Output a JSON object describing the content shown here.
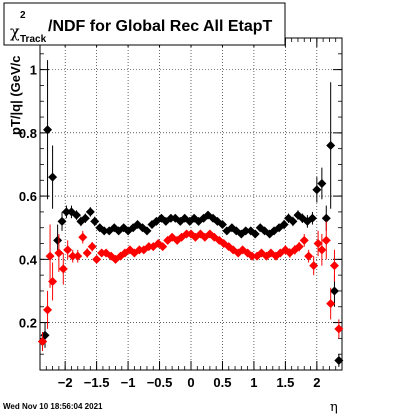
{
  "timestamp": "Wed Nov 10 18:56:04 2021",
  "chart_data": {
    "type": "scatter",
    "title": {
      "symbol": "χ",
      "superscript": "2",
      "subscript": "Track",
      "text": "/NDF for Global Rec All EtapT"
    },
    "xlabel": "η",
    "ylabel": "pT/|q| (GeV/c",
    "xlim": [
      -2.4,
      2.4
    ],
    "ylim": [
      0.05,
      1.1
    ],
    "xticks": [
      -2,
      -1.5,
      -1,
      -0.5,
      0,
      0.5,
      1,
      1.5,
      2
    ],
    "xtick_labels": [
      "−2",
      "−1.5",
      "−1",
      "−0.5",
      "0",
      "0.5",
      "1",
      "1.5",
      "2"
    ],
    "yticks": [
      0.2,
      0.4,
      0.6,
      0.8,
      1
    ],
    "ytick_labels": [
      "0.2",
      "0.4",
      "0.6",
      "0.8",
      "1"
    ],
    "grid": true,
    "series": [
      {
        "color": "#000000",
        "points": [
          {
            "x": -2.36,
            "y": 0.14,
            "e": 0.03
          },
          {
            "x": -2.32,
            "y": 0.16,
            "e": 0.04
          },
          {
            "x": -2.28,
            "y": 0.81,
            "e": 0.22
          },
          {
            "x": -2.2,
            "y": 0.66,
            "e": 0.1
          },
          {
            "x": -2.12,
            "y": 0.46,
            "e": 0.05
          },
          {
            "x": -2.05,
            "y": 0.52,
            "e": 0.03
          },
          {
            "x": -1.98,
            "y": 0.55,
            "e": 0.02
          },
          {
            "x": -1.9,
            "y": 0.55,
            "e": 0.02
          },
          {
            "x": -1.82,
            "y": 0.54,
            "e": 0.015
          },
          {
            "x": -1.75,
            "y": 0.52,
            "e": 0.015
          },
          {
            "x": -1.68,
            "y": 0.53,
            "e": 0.015
          },
          {
            "x": -1.6,
            "y": 0.55,
            "e": 0.015
          },
          {
            "x": -1.53,
            "y": 0.52,
            "e": 0.015
          },
          {
            "x": -1.45,
            "y": 0.5,
            "e": 0.01
          },
          {
            "x": -1.38,
            "y": 0.49,
            "e": 0.01
          },
          {
            "x": -1.3,
            "y": 0.49,
            "e": 0.01
          },
          {
            "x": -1.22,
            "y": 0.5,
            "e": 0.01
          },
          {
            "x": -1.15,
            "y": 0.49,
            "e": 0.01
          },
          {
            "x": -1.07,
            "y": 0.5,
            "e": 0.01
          },
          {
            "x": -1.0,
            "y": 0.49,
            "e": 0.01
          },
          {
            "x": -0.92,
            "y": 0.5,
            "e": 0.01
          },
          {
            "x": -0.85,
            "y": 0.51,
            "e": 0.01
          },
          {
            "x": -0.77,
            "y": 0.5,
            "e": 0.01
          },
          {
            "x": -0.7,
            "y": 0.49,
            "e": 0.01
          },
          {
            "x": -0.62,
            "y": 0.51,
            "e": 0.01
          },
          {
            "x": -0.55,
            "y": 0.52,
            "e": 0.01
          },
          {
            "x": -0.47,
            "y": 0.53,
            "e": 0.01
          },
          {
            "x": -0.4,
            "y": 0.52,
            "e": 0.01
          },
          {
            "x": -0.32,
            "y": 0.53,
            "e": 0.01
          },
          {
            "x": -0.25,
            "y": 0.53,
            "e": 0.01
          },
          {
            "x": -0.17,
            "y": 0.52,
            "e": 0.01
          },
          {
            "x": -0.1,
            "y": 0.53,
            "e": 0.01
          },
          {
            "x": -0.02,
            "y": 0.52,
            "e": 0.01
          },
          {
            "x": 0.05,
            "y": 0.53,
            "e": 0.01
          },
          {
            "x": 0.12,
            "y": 0.52,
            "e": 0.01
          },
          {
            "x": 0.2,
            "y": 0.53,
            "e": 0.01
          },
          {
            "x": 0.27,
            "y": 0.54,
            "e": 0.01
          },
          {
            "x": 0.35,
            "y": 0.53,
            "e": 0.01
          },
          {
            "x": 0.42,
            "y": 0.52,
            "e": 0.01
          },
          {
            "x": 0.5,
            "y": 0.51,
            "e": 0.01
          },
          {
            "x": 0.57,
            "y": 0.49,
            "e": 0.01
          },
          {
            "x": 0.65,
            "y": 0.5,
            "e": 0.01
          },
          {
            "x": 0.72,
            "y": 0.49,
            "e": 0.01
          },
          {
            "x": 0.8,
            "y": 0.48,
            "e": 0.01
          },
          {
            "x": 0.87,
            "y": 0.49,
            "e": 0.01
          },
          {
            "x": 0.95,
            "y": 0.49,
            "e": 0.01
          },
          {
            "x": 1.02,
            "y": 0.48,
            "e": 0.01
          },
          {
            "x": 1.1,
            "y": 0.5,
            "e": 0.01
          },
          {
            "x": 1.17,
            "y": 0.49,
            "e": 0.01
          },
          {
            "x": 1.25,
            "y": 0.48,
            "e": 0.01
          },
          {
            "x": 1.32,
            "y": 0.49,
            "e": 0.01
          },
          {
            "x": 1.4,
            "y": 0.5,
            "e": 0.01
          },
          {
            "x": 1.48,
            "y": 0.51,
            "e": 0.015
          },
          {
            "x": 1.55,
            "y": 0.53,
            "e": 0.015
          },
          {
            "x": 1.62,
            "y": 0.52,
            "e": 0.015
          },
          {
            "x": 1.7,
            "y": 0.54,
            "e": 0.015
          },
          {
            "x": 1.77,
            "y": 0.53,
            "e": 0.015
          },
          {
            "x": 1.85,
            "y": 0.52,
            "e": 0.02
          },
          {
            "x": 1.93,
            "y": 0.53,
            "e": 0.02
          },
          {
            "x": 2.0,
            "y": 0.62,
            "e": 0.04
          },
          {
            "x": 2.08,
            "y": 0.64,
            "e": 0.05
          },
          {
            "x": 2.15,
            "y": 0.53,
            "e": 0.04
          },
          {
            "x": 2.22,
            "y": 0.76,
            "e": 0.2
          },
          {
            "x": 2.28,
            "y": 0.3,
            "e": 0.05
          },
          {
            "x": 2.35,
            "y": 0.08,
            "e": 0.02
          }
        ]
      },
      {
        "color": "#ff0000",
        "points": [
          {
            "x": -2.36,
            "y": 0.14,
            "e": 0.03
          },
          {
            "x": -2.28,
            "y": 0.24,
            "e": 0.06
          },
          {
            "x": -2.24,
            "y": 0.41,
            "e": 0.1
          },
          {
            "x": -2.2,
            "y": 0.33,
            "e": 0.06
          },
          {
            "x": -2.1,
            "y": 0.42,
            "e": 0.06
          },
          {
            "x": -2.03,
            "y": 0.37,
            "e": 0.05
          },
          {
            "x": -1.96,
            "y": 0.43,
            "e": 0.03
          },
          {
            "x": -1.88,
            "y": 0.41,
            "e": 0.02
          },
          {
            "x": -1.8,
            "y": 0.41,
            "e": 0.02
          },
          {
            "x": -1.72,
            "y": 0.47,
            "e": 0.02
          },
          {
            "x": -1.65,
            "y": 0.42,
            "e": 0.015
          },
          {
            "x": -1.57,
            "y": 0.44,
            "e": 0.015
          },
          {
            "x": -1.5,
            "y": 0.4,
            "e": 0.01
          },
          {
            "x": -1.42,
            "y": 0.42,
            "e": 0.01
          },
          {
            "x": -1.35,
            "y": 0.42,
            "e": 0.01
          },
          {
            "x": -1.27,
            "y": 0.41,
            "e": 0.01
          },
          {
            "x": -1.2,
            "y": 0.4,
            "e": 0.01
          },
          {
            "x": -1.12,
            "y": 0.41,
            "e": 0.01
          },
          {
            "x": -1.05,
            "y": 0.42,
            "e": 0.01
          },
          {
            "x": -0.97,
            "y": 0.43,
            "e": 0.01
          },
          {
            "x": -0.9,
            "y": 0.42,
            "e": 0.01
          },
          {
            "x": -0.82,
            "y": 0.43,
            "e": 0.01
          },
          {
            "x": -0.75,
            "y": 0.43,
            "e": 0.01
          },
          {
            "x": -0.67,
            "y": 0.44,
            "e": 0.01
          },
          {
            "x": -0.6,
            "y": 0.44,
            "e": 0.01
          },
          {
            "x": -0.52,
            "y": 0.45,
            "e": 0.01
          },
          {
            "x": -0.45,
            "y": 0.44,
            "e": 0.01
          },
          {
            "x": -0.37,
            "y": 0.46,
            "e": 0.01
          },
          {
            "x": -0.3,
            "y": 0.47,
            "e": 0.01
          },
          {
            "x": -0.22,
            "y": 0.46,
            "e": 0.01
          },
          {
            "x": -0.15,
            "y": 0.47,
            "e": 0.01
          },
          {
            "x": -0.07,
            "y": 0.48,
            "e": 0.01
          },
          {
            "x": 0.0,
            "y": 0.48,
            "e": 0.01
          },
          {
            "x": 0.07,
            "y": 0.47,
            "e": 0.01
          },
          {
            "x": 0.15,
            "y": 0.48,
            "e": 0.01
          },
          {
            "x": 0.22,
            "y": 0.47,
            "e": 0.01
          },
          {
            "x": 0.3,
            "y": 0.48,
            "e": 0.01
          },
          {
            "x": 0.37,
            "y": 0.47,
            "e": 0.01
          },
          {
            "x": 0.45,
            "y": 0.46,
            "e": 0.01
          },
          {
            "x": 0.52,
            "y": 0.45,
            "e": 0.01
          },
          {
            "x": 0.6,
            "y": 0.44,
            "e": 0.01
          },
          {
            "x": 0.67,
            "y": 0.43,
            "e": 0.01
          },
          {
            "x": 0.75,
            "y": 0.42,
            "e": 0.01
          },
          {
            "x": 0.82,
            "y": 0.43,
            "e": 0.01
          },
          {
            "x": 0.9,
            "y": 0.42,
            "e": 0.01
          },
          {
            "x": 0.97,
            "y": 0.41,
            "e": 0.01
          },
          {
            "x": 1.05,
            "y": 0.41,
            "e": 0.01
          },
          {
            "x": 1.12,
            "y": 0.42,
            "e": 0.01
          },
          {
            "x": 1.2,
            "y": 0.41,
            "e": 0.01
          },
          {
            "x": 1.27,
            "y": 0.42,
            "e": 0.01
          },
          {
            "x": 1.35,
            "y": 0.41,
            "e": 0.01
          },
          {
            "x": 1.42,
            "y": 0.42,
            "e": 0.01
          },
          {
            "x": 1.5,
            "y": 0.43,
            "e": 0.015
          },
          {
            "x": 1.57,
            "y": 0.42,
            "e": 0.015
          },
          {
            "x": 1.65,
            "y": 0.43,
            "e": 0.015
          },
          {
            "x": 1.72,
            "y": 0.44,
            "e": 0.015
          },
          {
            "x": 1.8,
            "y": 0.46,
            "e": 0.02
          },
          {
            "x": 1.87,
            "y": 0.41,
            "e": 0.02
          },
          {
            "x": 1.95,
            "y": 0.38,
            "e": 0.03
          },
          {
            "x": 2.02,
            "y": 0.45,
            "e": 0.04
          },
          {
            "x": 2.08,
            "y": 0.43,
            "e": 0.05
          },
          {
            "x": 2.15,
            "y": 0.46,
            "e": 0.06
          },
          {
            "x": 2.22,
            "y": 0.26,
            "e": 0.05
          },
          {
            "x": 2.28,
            "y": 0.38,
            "e": 0.05
          },
          {
            "x": 2.35,
            "y": 0.18,
            "e": 0.03
          }
        ]
      }
    ]
  }
}
